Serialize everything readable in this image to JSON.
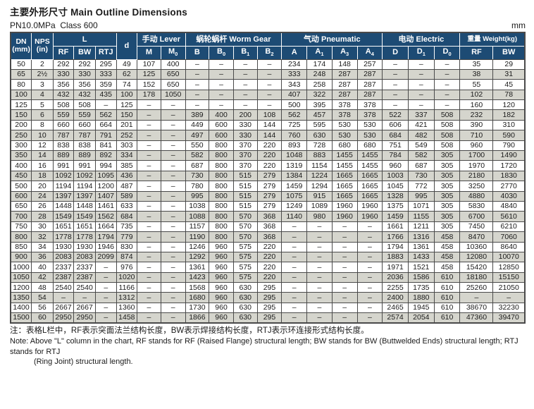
{
  "page": {
    "title": "主要外形尺寸 Main Outline Dimensions",
    "subtitle": "PN10.0MPa  Class 600",
    "unit": "mm"
  },
  "colors": {
    "header_bg": "#1d4b74",
    "header_text": "#ffffff",
    "row_stripe": "#d5d5cd",
    "grid_line": "#4a4a4a"
  },
  "table": {
    "header": {
      "dn": "DN\n(mm)",
      "nps": "NPS\n(in)",
      "l_group": "L",
      "d": "d",
      "lever_group": "手动 Lever",
      "worm_group": "蜗轮蜗杆 Worm Gear",
      "pneumatic_group": "气动 Pneumatic",
      "electric_group": "电动 Electric",
      "weight_group": "重量 Weight(kg)",
      "sub_columns": [
        "RF",
        "BW",
        "RTJ",
        "M",
        "M0",
        "B",
        "B0",
        "B1",
        "B2",
        "A",
        "A1",
        "A3",
        "A4",
        "D",
        "D1",
        "D0",
        "RF",
        "BW"
      ]
    },
    "rows": [
      [
        "50",
        "2",
        "292",
        "292",
        "295",
        "49",
        "107",
        "400",
        "–",
        "–",
        "–",
        "–",
        "234",
        "174",
        "148",
        "257",
        "–",
        "–",
        "–",
        "35",
        "29"
      ],
      [
        "65",
        "2½",
        "330",
        "330",
        "333",
        "62",
        "125",
        "650",
        "–",
        "–",
        "–",
        "–",
        "333",
        "248",
        "287",
        "287",
        "–",
        "–",
        "–",
        "38",
        "31"
      ],
      [
        "80",
        "3",
        "356",
        "356",
        "359",
        "74",
        "152",
        "650",
        "–",
        "–",
        "–",
        "–",
        "343",
        "258",
        "287",
        "287",
        "–",
        "–",
        "–",
        "55",
        "45"
      ],
      [
        "100",
        "4",
        "432",
        "432",
        "435",
        "100",
        "178",
        "1050",
        "–",
        "–",
        "–",
        "–",
        "407",
        "322",
        "287",
        "287",
        "–",
        "–",
        "–",
        "102",
        "78"
      ],
      [
        "125",
        "5",
        "508",
        "508",
        "–",
        "125",
        "–",
        "–",
        "–",
        "–",
        "–",
        "–",
        "500",
        "395",
        "378",
        "378",
        "–",
        "–",
        "–",
        "160",
        "120"
      ],
      [
        "150",
        "6",
        "559",
        "559",
        "562",
        "150",
        "–",
        "–",
        "389",
        "400",
        "200",
        "108",
        "562",
        "457",
        "378",
        "378",
        "522",
        "337",
        "508",
        "232",
        "182"
      ],
      [
        "200",
        "8",
        "660",
        "660",
        "664",
        "201",
        "–",
        "–",
        "449",
        "600",
        "330",
        "144",
        "725",
        "595",
        "530",
        "530",
        "606",
        "421",
        "508",
        "390",
        "310"
      ],
      [
        "250",
        "10",
        "787",
        "787",
        "791",
        "252",
        "–",
        "–",
        "497",
        "600",
        "330",
        "144",
        "760",
        "630",
        "530",
        "530",
        "684",
        "482",
        "508",
        "710",
        "590"
      ],
      [
        "300",
        "12",
        "838",
        "838",
        "841",
        "303",
        "–",
        "–",
        "550",
        "800",
        "370",
        "220",
        "893",
        "728",
        "680",
        "680",
        "751",
        "549",
        "508",
        "960",
        "790"
      ],
      [
        "350",
        "14",
        "889",
        "889",
        "892",
        "334",
        "–",
        "–",
        "582",
        "800",
        "370",
        "220",
        "1048",
        "883",
        "1455",
        "1455",
        "784",
        "582",
        "305",
        "1700",
        "1490"
      ],
      [
        "400",
        "16",
        "991",
        "991",
        "994",
        "385",
        "–",
        "–",
        "687",
        "800",
        "370",
        "220",
        "1319",
        "1154",
        "1455",
        "1455",
        "960",
        "687",
        "305",
        "1970",
        "1720"
      ],
      [
        "450",
        "18",
        "1092",
        "1092",
        "1095",
        "436",
        "–",
        "–",
        "730",
        "800",
        "515",
        "279",
        "1384",
        "1224",
        "1665",
        "1665",
        "1003",
        "730",
        "305",
        "2180",
        "1830"
      ],
      [
        "500",
        "20",
        "1194",
        "1194",
        "1200",
        "487",
        "–",
        "–",
        "780",
        "800",
        "515",
        "279",
        "1459",
        "1294",
        "1665",
        "1665",
        "1045",
        "772",
        "305",
        "3250",
        "2770"
      ],
      [
        "600",
        "24",
        "1397",
        "1397",
        "1407",
        "589",
        "–",
        "–",
        "995",
        "800",
        "515",
        "279",
        "1075",
        "915",
        "1665",
        "1665",
        "1328",
        "995",
        "305",
        "4880",
        "4030"
      ],
      [
        "650",
        "26",
        "1448",
        "1448",
        "1461",
        "633",
        "–",
        "–",
        "1038",
        "800",
        "515",
        "279",
        "1249",
        "1089",
        "1960",
        "1960",
        "1375",
        "1071",
        "305",
        "5830",
        "4840"
      ],
      [
        "700",
        "28",
        "1549",
        "1549",
        "1562",
        "684",
        "–",
        "–",
        "1088",
        "800",
        "570",
        "368",
        "1140",
        "980",
        "1960",
        "1960",
        "1459",
        "1155",
        "305",
        "6700",
        "5610"
      ],
      [
        "750",
        "30",
        "1651",
        "1651",
        "1664",
        "735",
        "–",
        "–",
        "1157",
        "800",
        "570",
        "368",
        "–",
        "–",
        "–",
        "–",
        "1661",
        "1211",
        "305",
        "7450",
        "6210"
      ],
      [
        "800",
        "32",
        "1778",
        "1778",
        "1794",
        "779",
        "–",
        "–",
        "1190",
        "800",
        "570",
        "368",
        "–",
        "–",
        "–",
        "–",
        "1766",
        "1316",
        "458",
        "8470",
        "7060"
      ],
      [
        "850",
        "34",
        "1930",
        "1930",
        "1946",
        "830",
        "–",
        "–",
        "1246",
        "960",
        "575",
        "220",
        "–",
        "–",
        "–",
        "–",
        "1794",
        "1361",
        "458",
        "10360",
        "8640"
      ],
      [
        "900",
        "36",
        "2083",
        "2083",
        "2099",
        "874",
        "–",
        "–",
        "1292",
        "960",
        "575",
        "220",
        "–",
        "–",
        "–",
        "–",
        "1883",
        "1433",
        "458",
        "12080",
        "10070"
      ],
      [
        "1000",
        "40",
        "2337",
        "2337",
        "–",
        "976",
        "–",
        "–",
        "1361",
        "960",
        "575",
        "220",
        "–",
        "–",
        "–",
        "–",
        "1971",
        "1521",
        "458",
        "15420",
        "12850"
      ],
      [
        "1050",
        "42",
        "2387",
        "2387",
        "–",
        "1020",
        "–",
        "–",
        "1423",
        "960",
        "575",
        "220",
        "–",
        "–",
        "–",
        "–",
        "2036",
        "1586",
        "610",
        "18180",
        "15150"
      ],
      [
        "1200",
        "48",
        "2540",
        "2540",
        "–",
        "1166",
        "–",
        "–",
        "1568",
        "960",
        "630",
        "295",
        "–",
        "–",
        "–",
        "–",
        "2255",
        "1735",
        "610",
        "25260",
        "21050"
      ],
      [
        "1350",
        "54",
        "–",
        "–",
        "–",
        "1312",
        "–",
        "–",
        "1680",
        "960",
        "630",
        "295",
        "–",
        "–",
        "–",
        "–",
        "2400",
        "1880",
        "610",
        "–",
        "–"
      ],
      [
        "1400",
        "56",
        "2667",
        "2667",
        "–",
        "1360",
        "–",
        "–",
        "1730",
        "960",
        "630",
        "295",
        "–",
        "–",
        "–",
        "–",
        "2465",
        "1945",
        "610",
        "38670",
        "32230"
      ],
      [
        "1500",
        "60",
        "2950",
        "2950",
        "–",
        "1458",
        "–",
        "–",
        "1866",
        "960",
        "630",
        "295",
        "–",
        "–",
        "–",
        "–",
        "2574",
        "2054",
        "610",
        "47360",
        "39470"
      ]
    ]
  },
  "notes": {
    "zh": "注：表格L栏中，RF表示突面法兰结构长度，BW表示焊接结构长度，RTJ表示环连接形式结构长度。",
    "en_line1": "Note: Above \"L\" column in the chart, RF stands for RF (Raised Flange) structural length; BW stands for BW (Buttwelded Ends) structural length; RTJ stands for RTJ",
    "en_line2": "(Ring Joint) structural length."
  }
}
